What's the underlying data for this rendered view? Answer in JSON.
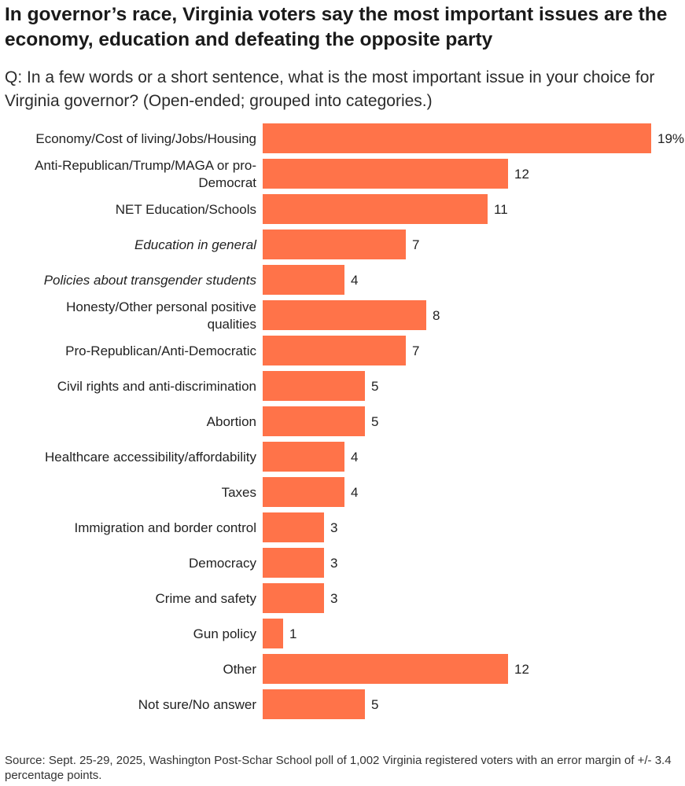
{
  "colors": {
    "bar": "#ff7349",
    "text": "#222222"
  },
  "chart_data": {
    "type": "bar",
    "orientation": "horizontal",
    "title": "In governor’s race, Virginia voters say the most important issues are the economy, education and defeating the opposite party",
    "subtitle": "Q: In a few words or a short sentence, what is the most important issue in your choice for Virginia governor? (Open-ended; grouped into categories.)",
    "source": "Source: Sept. 25-29, 2025, Washington Post-Schar School poll of 1,002 Virginia registered voters with an error margin of +/- 3.4 percentage points.",
    "xlim": [
      0,
      19
    ],
    "categories": [
      {
        "label_lines": [
          "Economy/Cost of living/Jobs/Housing"
        ],
        "value": 19,
        "value_label": "19%",
        "italic": false
      },
      {
        "label_lines": [
          "Anti-Republican/Trump/MAGA or pro-",
          "Democrat"
        ],
        "value": 12,
        "value_label": "12",
        "italic": false
      },
      {
        "label_lines": [
          "NET Education/Schools"
        ],
        "value": 11,
        "value_label": "11",
        "italic": false
      },
      {
        "label_lines": [
          "Education in general"
        ],
        "value": 7,
        "value_label": "7",
        "italic": true
      },
      {
        "label_lines": [
          "Policies about transgender students"
        ],
        "value": 4,
        "value_label": "4",
        "italic": true
      },
      {
        "label_lines": [
          "Honesty/Other personal positive",
          "qualities"
        ],
        "value": 8,
        "value_label": "8",
        "italic": false
      },
      {
        "label_lines": [
          "Pro-Republican/Anti-Democratic"
        ],
        "value": 7,
        "value_label": "7",
        "italic": false
      },
      {
        "label_lines": [
          "Civil rights and anti-discrimination"
        ],
        "value": 5,
        "value_label": "5",
        "italic": false
      },
      {
        "label_lines": [
          "Abortion"
        ],
        "value": 5,
        "value_label": "5",
        "italic": false
      },
      {
        "label_lines": [
          "Healthcare accessibility/affordability"
        ],
        "value": 4,
        "value_label": "4",
        "italic": false
      },
      {
        "label_lines": [
          "Taxes"
        ],
        "value": 4,
        "value_label": "4",
        "italic": false
      },
      {
        "label_lines": [
          "Immigration and border control"
        ],
        "value": 3,
        "value_label": "3",
        "italic": false
      },
      {
        "label_lines": [
          "Democracy"
        ],
        "value": 3,
        "value_label": "3",
        "italic": false
      },
      {
        "label_lines": [
          "Crime and safety"
        ],
        "value": 3,
        "value_label": "3",
        "italic": false
      },
      {
        "label_lines": [
          "Gun policy"
        ],
        "value": 1,
        "value_label": "1",
        "italic": false
      },
      {
        "label_lines": [
          "Other"
        ],
        "value": 12,
        "value_label": "12",
        "italic": false
      },
      {
        "label_lines": [
          "Not sure/No answer"
        ],
        "value": 5,
        "value_label": "5",
        "italic": false
      }
    ]
  }
}
